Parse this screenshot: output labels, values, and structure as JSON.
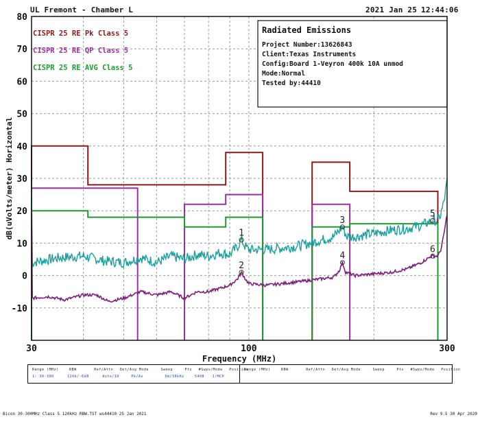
{
  "header": {
    "site": "UL Fremont - Chamber L",
    "date": "2021 Jan 25",
    "time": "12:44:06"
  },
  "info_box": {
    "title": "Radiated Emissions",
    "project": "Project Number:13626843",
    "client": "Client:Texas Instruments",
    "config": "Config:Board 1-Veyron 400k 10A unmod",
    "mode": "Mode:Normal",
    "tested_by": "Tested by:44410"
  },
  "settings_table": {
    "headers": [
      "Range (MHz)",
      "RBW",
      "Ref/Attn",
      "Det/Avg Mode",
      "Sweep",
      "Pts",
      "#Swps/Mode",
      "Position"
    ],
    "values": [
      "1: 30-300",
      "120k/-6dB",
      "Auto/10",
      "Pk/Av",
      "5m/30kHz",
      "5408",
      "1/MCP",
      ""
    ]
  },
  "footer": {
    "left": "Bicon 30-300MHz Class 5 120kHz RBW.TST  ws44410 25 Jan 2021",
    "right": "Rev 9.5 30 Apr 2020"
  },
  "chart_data": {
    "type": "line",
    "xlabel": "Frequency (MHz)",
    "ylabel": "dB(uVolts/meter) Horizontal",
    "xscale": "log",
    "xlim": [
      30,
      300
    ],
    "ylim": [
      -20,
      80
    ],
    "xticks": [
      30,
      100,
      300
    ],
    "yticks": [
      -10,
      0,
      10,
      20,
      30,
      40,
      50,
      60,
      70,
      80
    ],
    "grid": true,
    "legend": [
      {
        "label": "CISPR 25 RE Pk Class 5",
        "color": "#8b1a1a"
      },
      {
        "label": "CISPR 25 RE QP Class 5",
        "color": "#9b2fa0"
      },
      {
        "label": "CISPR 25 RE AVG Class 5",
        "color": "#1e9a2e"
      }
    ],
    "limits": [
      {
        "name": "CISPR 25 RE Pk Class 5",
        "color": "#8b1a1a",
        "segments": [
          [
            30,
            41,
            40
          ],
          [
            41,
            88,
            28
          ],
          [
            88,
            108,
            38
          ],
          [
            142,
            175,
            35
          ],
          [
            175,
            285,
            26
          ]
        ]
      },
      {
        "name": "CISPR 25 RE QP Class 5",
        "color": "#9b2fa0",
        "segments": [
          [
            30,
            54,
            27
          ],
          [
            70,
            88,
            22
          ],
          [
            88,
            108,
            25
          ],
          [
            142,
            175,
            22
          ]
        ]
      },
      {
        "name": "CISPR 25 RE AVG Class 5",
        "color": "#1e9a2e",
        "segments": [
          [
            30,
            41,
            20
          ],
          [
            41,
            70,
            18
          ],
          [
            70,
            88,
            15
          ],
          [
            88,
            108,
            18
          ],
          [
            142,
            175,
            15
          ],
          [
            175,
            285,
            16
          ]
        ]
      }
    ],
    "series": [
      {
        "color": "#1a9e9e",
        "points": [
          [
            30,
            4
          ],
          [
            35,
            5.5
          ],
          [
            40,
            6
          ],
          [
            45,
            4.5
          ],
          [
            50,
            4
          ],
          [
            55,
            5.5
          ],
          [
            60,
            4
          ],
          [
            65,
            6
          ],
          [
            70,
            5
          ],
          [
            75,
            6.5
          ],
          [
            80,
            6
          ],
          [
            85,
            7
          ],
          [
            90,
            6.5
          ],
          [
            94,
            9
          ],
          [
            96,
            11
          ],
          [
            98,
            9
          ],
          [
            100,
            8
          ],
          [
            110,
            8
          ],
          [
            120,
            8.5
          ],
          [
            130,
            9
          ],
          [
            140,
            10
          ],
          [
            150,
            11
          ],
          [
            160,
            12
          ],
          [
            168,
            15
          ],
          [
            172,
            12
          ],
          [
            180,
            12
          ],
          [
            200,
            13
          ],
          [
            220,
            14
          ],
          [
            240,
            14.5
          ],
          [
            260,
            15.5
          ],
          [
            277,
            17
          ],
          [
            285,
            17
          ],
          [
            290,
            19
          ],
          [
            295,
            23
          ],
          [
            300,
            29
          ]
        ]
      },
      {
        "color": "#7a1f7a",
        "points": [
          [
            30,
            -7
          ],
          [
            33,
            -6.5
          ],
          [
            36,
            -7.5
          ],
          [
            40,
            -6
          ],
          [
            43,
            -6
          ],
          [
            46,
            -8
          ],
          [
            50,
            -7
          ],
          [
            55,
            -5
          ],
          [
            60,
            -6
          ],
          [
            65,
            -5
          ],
          [
            70,
            -7
          ],
          [
            75,
            -5
          ],
          [
            80,
            -5
          ],
          [
            85,
            -4
          ],
          [
            90,
            -3
          ],
          [
            94,
            -1
          ],
          [
            96,
            1
          ],
          [
            98,
            -1
          ],
          [
            100,
            -2.5
          ],
          [
            110,
            -3
          ],
          [
            120,
            -2.5
          ],
          [
            130,
            -2
          ],
          [
            140,
            -1.5
          ],
          [
            150,
            -1
          ],
          [
            160,
            -0.5
          ],
          [
            165,
            1.5
          ],
          [
            168,
            4
          ],
          [
            171,
            1
          ],
          [
            180,
            0
          ],
          [
            200,
            0.5
          ],
          [
            220,
            1
          ],
          [
            240,
            2
          ],
          [
            260,
            4
          ],
          [
            275,
            6
          ],
          [
            285,
            6
          ],
          [
            290,
            8
          ],
          [
            295,
            13
          ],
          [
            300,
            19
          ]
        ]
      }
    ],
    "markers": [
      {
        "label": "1",
        "x": 96,
        "y": 11
      },
      {
        "label": "2",
        "x": 96,
        "y": 1
      },
      {
        "label": "3",
        "x": 168,
        "y": 15
      },
      {
        "label": "4",
        "x": 168,
        "y": 4
      },
      {
        "label": "5",
        "x": 277,
        "y": 17
      },
      {
        "label": "6",
        "x": 277,
        "y": 6
      }
    ]
  }
}
